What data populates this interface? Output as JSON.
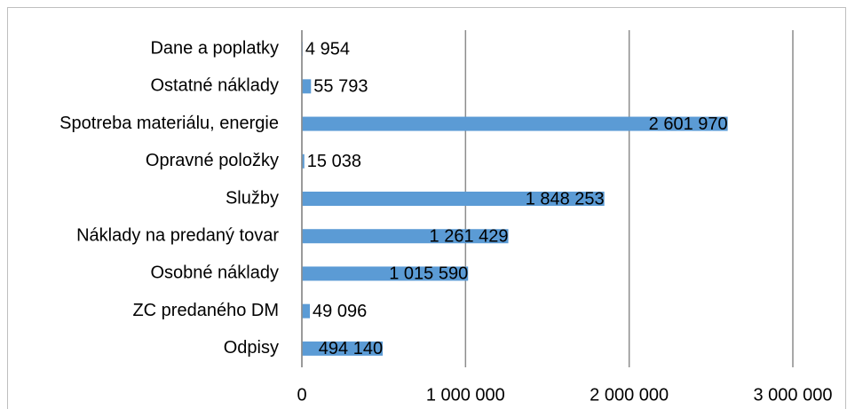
{
  "chart_data": {
    "type": "bar",
    "orientation": "horizontal",
    "categories": [
      "Dane a poplatky",
      "Ostatné náklady",
      "Spotreba materiálu, energie",
      "Opravné položky",
      "Služby",
      "Náklady na predaný tovar",
      "Osobné náklady",
      "ZC predaného DM",
      "Odpisy"
    ],
    "values": [
      4954,
      55793,
      2601970,
      15038,
      1848253,
      1261429,
      1015590,
      49096,
      494140
    ],
    "value_labels": [
      "4 954",
      "55 793",
      "2 601 970",
      "15 038",
      "1 848 253",
      "1 261 429",
      "1 015 590",
      "49 096",
      "494 140"
    ],
    "color": "#5b9bd5",
    "xlim": [
      0,
      3000000
    ],
    "xticks": [
      0,
      {
        "value": 1000000,
        "label": "1 000 000"
      },
      {
        "value": 2000000,
        "label": "2 000 000"
      },
      {
        "value": 3000000,
        "label": "3 000 000"
      }
    ],
    "grid": true
  }
}
